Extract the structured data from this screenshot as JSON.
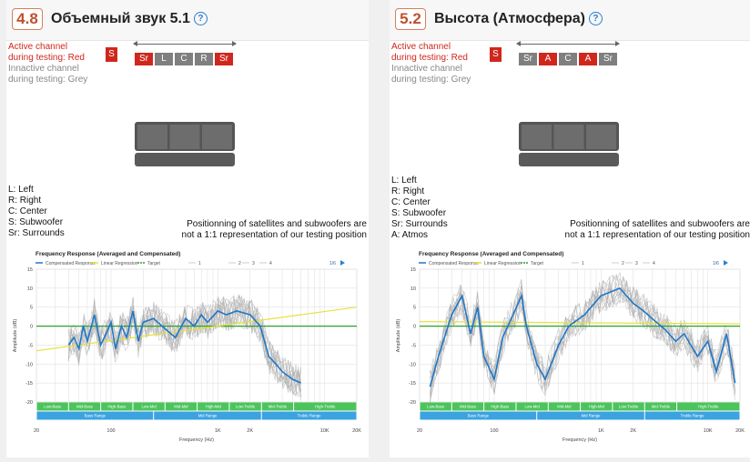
{
  "panels": [
    {
      "score": "4.8",
      "title": "Объемный звук 5.1",
      "legend": {
        "active_1": "Active channel",
        "active_2": "during testing: Red",
        "inactive_1": "Innactive channel",
        "inactive_2": "during testing: Grey"
      },
      "subwoofer_label": "S",
      "channels": [
        {
          "label": "Sr",
          "color": "red"
        },
        {
          "label": "L",
          "color": "grey"
        },
        {
          "label": "C",
          "color": "grey"
        },
        {
          "label": "R",
          "color": "grey"
        },
        {
          "label": "Sr",
          "color": "red"
        }
      ],
      "key": [
        "L: Left",
        "R: Right",
        "C: Center",
        "S: Subwoofer",
        "Sr: Surrounds"
      ],
      "note_1": "Positionning of satellites and subwoofers are",
      "note_2": "not a 1:1 representation of our testing position",
      "chart_data": {
        "type": "line",
        "title": "Frequency Response (Averaged and Compensated)",
        "legend_items": [
          "Compensated Response",
          "Linear Regression",
          "Target",
          "1",
          "2",
          "3",
          "4"
        ],
        "page_indicator": "1/6",
        "xlabel": "Frequency (Hz)",
        "ylabel": "Amplitude (dB)",
        "x_scale": "log",
        "xlim": [
          20,
          20000
        ],
        "ylim": [
          -20,
          15
        ],
        "x_ticks": [
          "20",
          "100",
          "1K",
          "2K",
          "10K",
          "20K"
        ],
        "y_ticks": [
          "15",
          "10",
          "5",
          "0",
          "-5",
          "-10",
          "-15",
          "-20"
        ],
        "bands_top": [
          "Low-Bass",
          "Mid-Bass",
          "High-Bass",
          "Low-Mid",
          "Mid-Mid",
          "High-Mid",
          "Low-Treble",
          "Mid-Treble",
          "High-Treble"
        ],
        "bands_bottom": [
          "Bass Range",
          "Mid Range",
          "Treble Range"
        ],
        "series": [
          {
            "name": "Compensated Response",
            "x": [
              40,
              45,
              50,
              55,
              60,
              70,
              80,
              90,
              100,
              110,
              125,
              140,
              160,
              180,
              200,
              250,
              300,
              400,
              500,
              600,
              700,
              800,
              1000,
              1200,
              1500,
              2000,
              2500,
              3000,
              3500,
              4000,
              5000,
              6000
            ],
            "y": [
              -5,
              -3,
              -6,
              0,
              -4,
              3,
              -5,
              -2,
              1,
              -6,
              0,
              -3,
              4,
              -4,
              1,
              2,
              0,
              -3,
              2,
              0,
              3,
              1,
              4,
              3,
              4,
              3,
              0,
              -8,
              -10,
              -12,
              -14,
              -15
            ]
          },
          {
            "name": "Linear Regression",
            "x": [
              20,
              20000
            ],
            "y": [
              -6.5,
              5
            ]
          },
          {
            "name": "Target",
            "x": [
              20,
              20000
            ],
            "y": [
              0,
              0
            ]
          }
        ]
      }
    },
    {
      "score": "5.2",
      "title": "Высота (Атмосфера)",
      "legend": {
        "active_1": "Active channel",
        "active_2": "during testing: Red",
        "inactive_1": "Innactive channel",
        "inactive_2": "during testing: Grey"
      },
      "subwoofer_label": "S",
      "channels": [
        {
          "label": "Sr",
          "color": "grey"
        },
        {
          "label": "A",
          "color": "red"
        },
        {
          "label": "C",
          "color": "grey"
        },
        {
          "label": "A",
          "color": "red"
        },
        {
          "label": "Sr",
          "color": "grey"
        }
      ],
      "key": [
        "L: Left",
        "R: Right",
        "C: Center",
        "S: Subwoofer",
        "Sr: Surrounds",
        "A: Atmos"
      ],
      "note_1": "Positionning of satellites and subwoofers are",
      "note_2": "not a 1:1 representation of our testing position",
      "chart_data": {
        "type": "line",
        "title": "Frequency Response (Averaged and Compensated)",
        "legend_items": [
          "Compensated Response",
          "Linear Regression",
          "Target",
          "1",
          "2",
          "3",
          "4"
        ],
        "page_indicator": "1/6",
        "xlabel": "Frequency (Hz)",
        "ylabel": "Amplitude (dB)",
        "x_scale": "log",
        "xlim": [
          20,
          20000
        ],
        "ylim": [
          -20,
          15
        ],
        "x_ticks": [
          "20",
          "100",
          "1K",
          "2K",
          "10K",
          "20K"
        ],
        "y_ticks": [
          "15",
          "10",
          "5",
          "0",
          "-5",
          "-10",
          "-15",
          "-20"
        ],
        "bands_top": [
          "Low-Bass",
          "Mid-Bass",
          "High-Bass",
          "Low-Mid",
          "Mid-Mid",
          "High-Mid",
          "Low-Treble",
          "Mid-Treble",
          "High-Treble"
        ],
        "bands_bottom": [
          "Bass Range",
          "Mid Range",
          "Treble Range"
        ],
        "series": [
          {
            "name": "Compensated Response",
            "x": [
              25,
              30,
              40,
              50,
              60,
              70,
              80,
              100,
              120,
              150,
              180,
              200,
              250,
              300,
              400,
              500,
              700,
              1000,
              1500,
              2000,
              2500,
              3000,
              4000,
              5000,
              6000,
              8000,
              10000,
              12000,
              15000,
              18000
            ],
            "y": [
              -16,
              -8,
              3,
              8,
              -2,
              5,
              -8,
              -14,
              -3,
              3,
              8,
              0,
              -10,
              -14,
              -5,
              0,
              3,
              8,
              10,
              6,
              4,
              2,
              -1,
              -4,
              -2,
              -8,
              -4,
              -12,
              -2,
              -15
            ]
          },
          {
            "name": "Linear Regression",
            "x": [
              20,
              20000
            ],
            "y": [
              1.2,
              0.6
            ]
          },
          {
            "name": "Target",
            "x": [
              20,
              20000
            ],
            "y": [
              0,
              0
            ]
          }
        ]
      }
    }
  ]
}
